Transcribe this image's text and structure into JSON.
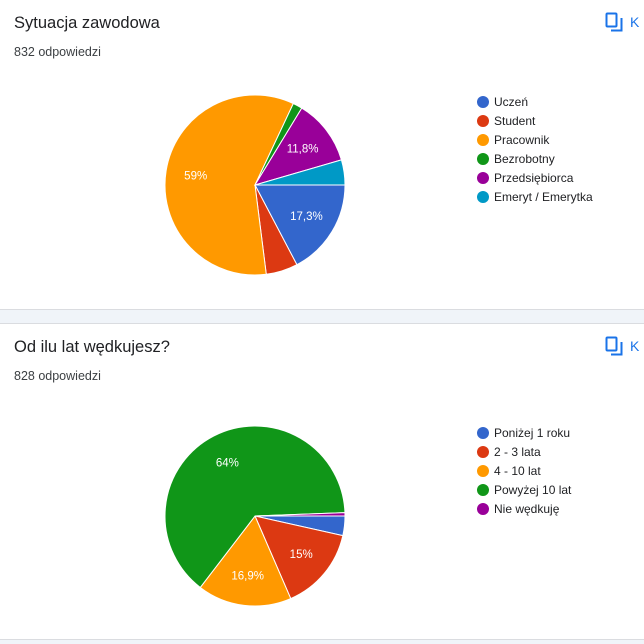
{
  "copy_label": "K",
  "icons": {
    "copy": "copy-chart-icon"
  },
  "chart_data": [
    {
      "type": "pie",
      "title": "Sytuacja zawodowa",
      "responses": "832 odpowiedzi",
      "categories": [
        "Uczeń",
        "Student",
        "Pracownik",
        "Bezrobotny",
        "Przedsiębiorca",
        "Emeryt / Emerytka"
      ],
      "values": [
        17.3,
        5.7,
        59,
        1.7,
        11.8,
        4.5
      ],
      "data_labels": [
        "17,3%",
        "",
        "59%",
        "",
        "11,8%",
        ""
      ],
      "colors": [
        "#3366cc",
        "#dc3912",
        "#ff9900",
        "#109618",
        "#990099",
        "#0099c6"
      ],
      "legend": "right"
    },
    {
      "type": "pie",
      "title": "Od ilu lat wędkujesz?",
      "responses": "828 odpowiedzi",
      "categories": [
        "Poniżej 1 roku",
        "2 - 3 lata",
        "4 - 10 lat",
        "Powyżej 10 lat",
        "Nie wędkuję"
      ],
      "values": [
        3.5,
        15,
        16.9,
        64,
        0.6
      ],
      "data_labels": [
        "",
        "15%",
        "16,9%",
        "64%",
        ""
      ],
      "colors": [
        "#3366cc",
        "#dc3912",
        "#ff9900",
        "#109618",
        "#990099"
      ],
      "legend": "right"
    }
  ]
}
